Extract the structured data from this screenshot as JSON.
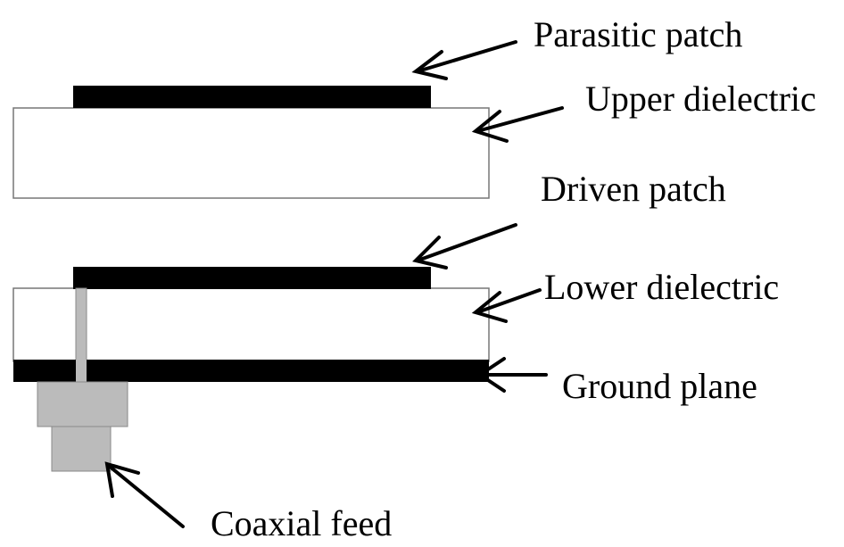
{
  "labels": [
    "Parasitic patch",
    "Upper dielectric",
    "Driven patch",
    "Lower dielectric",
    "Ground plane",
    "Coaxial feed"
  ]
}
